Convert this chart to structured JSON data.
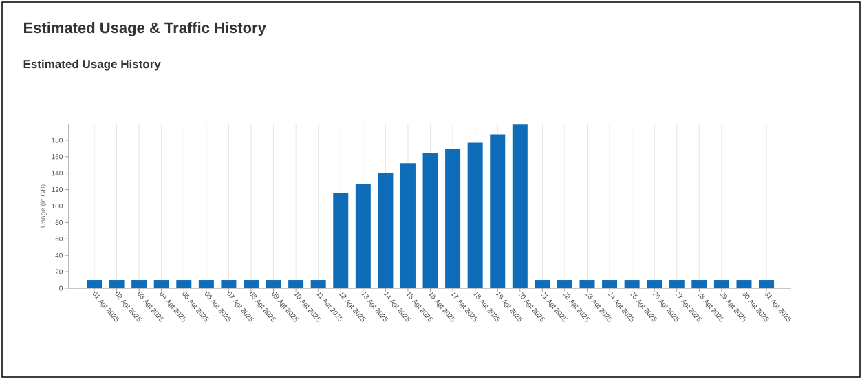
{
  "chart_data": {
    "type": "bar",
    "title": "Estimated Usage & Traffic History",
    "subtitle": "Estimated Usage History",
    "ylabel": "Usage (in GB)",
    "categories": [
      "01 Agt 2025",
      "02 Agt 2025",
      "03 Agt 2025",
      "04 Agt 2025",
      "05 Agt 2025",
      "06 Agt 2025",
      "07 Agt 2025",
      "08 Agt 2025",
      "09 Agt 2025",
      "10 Agt 2025",
      "11 Agt 2025",
      "12 Agt 2025",
      "13 Agt 2025",
      "14 Agt 2025",
      "15 Agt 2025",
      "16 Agt 2025",
      "17 Agt 2025",
      "18 Agt 2025",
      "19 Agt 2025",
      "20 Agt 2025",
      "21 Agt 2025",
      "22 Agt 2025",
      "23 Agt 2025",
      "24 Agt 2025",
      "25 Agt 2025",
      "26 Agt 2025",
      "27 Agt 2025",
      "28 Agt 2025",
      "29 Agt 2025",
      "30 Agt 2025",
      "31 Agt 2025"
    ],
    "values": [
      10,
      10,
      10,
      10,
      10,
      10,
      10,
      10,
      10,
      10,
      10,
      116,
      127,
      140,
      152,
      164,
      169,
      177,
      187,
      199,
      10,
      10,
      10,
      10,
      10,
      10,
      10,
      10,
      10,
      10,
      10
    ],
    "color": "#0f6cb8",
    "ylim": [
      0,
      200
    ],
    "yticks": [
      0,
      20,
      40,
      60,
      80,
      100,
      120,
      140,
      160,
      180
    ],
    "grid": "x"
  }
}
